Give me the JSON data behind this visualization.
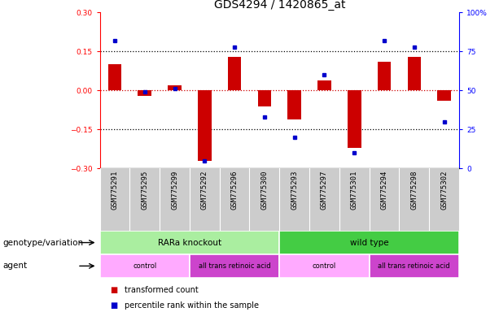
{
  "title": "GDS4294 / 1420865_at",
  "samples": [
    "GSM775291",
    "GSM775295",
    "GSM775299",
    "GSM775292",
    "GSM775296",
    "GSM775300",
    "GSM775293",
    "GSM775297",
    "GSM775301",
    "GSM775294",
    "GSM775298",
    "GSM775302"
  ],
  "bar_values": [
    0.1,
    -0.02,
    0.02,
    -0.27,
    0.13,
    -0.06,
    -0.11,
    0.04,
    -0.22,
    0.11,
    0.13,
    -0.04
  ],
  "dot_values": [
    82,
    49,
    51,
    5,
    78,
    33,
    20,
    60,
    10,
    82,
    78,
    30
  ],
  "ylim_left": [
    -0.3,
    0.3
  ],
  "ylim_right": [
    0,
    100
  ],
  "yticks_left": [
    -0.3,
    -0.15,
    0.0,
    0.15,
    0.3
  ],
  "yticks_right": [
    0,
    25,
    50,
    75,
    100
  ],
  "bar_color": "#cc0000",
  "dot_color": "#0000cc",
  "genotype_groups": [
    {
      "label": "RARa knockout",
      "start": 0,
      "end": 6,
      "color": "#aaeea0"
    },
    {
      "label": "wild type",
      "start": 6,
      "end": 12,
      "color": "#44cc44"
    }
  ],
  "agent_groups": [
    {
      "label": "control",
      "start": 0,
      "end": 3,
      "color": "#ffaaff"
    },
    {
      "label": "all trans retinoic acid",
      "start": 3,
      "end": 6,
      "color": "#cc44cc"
    },
    {
      "label": "control",
      "start": 6,
      "end": 9,
      "color": "#ffaaff"
    },
    {
      "label": "all trans retinoic acid",
      "start": 9,
      "end": 12,
      "color": "#cc44cc"
    }
  ],
  "legend_bar_label": "transformed count",
  "legend_dot_label": "percentile rank within the sample",
  "xlabel_genotype": "genotype/variation",
  "xlabel_agent": "agent",
  "bg_color": "#ffffff",
  "tick_area_color": "#cccccc",
  "title_fontsize": 10,
  "tick_fontsize": 6.5,
  "label_fontsize": 7.5
}
